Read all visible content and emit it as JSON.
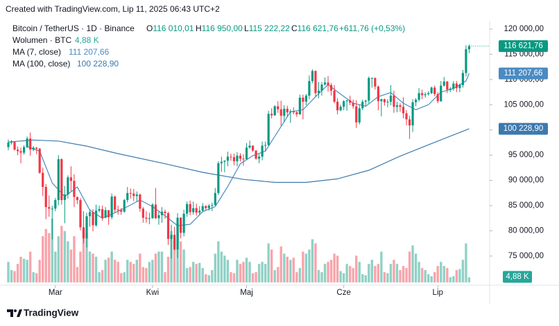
{
  "header": "Created with TradingView.com, Lip 11, 2025 06:43 UTC+2",
  "footer": "TradingView",
  "chart_data": {
    "type": "candlestick",
    "symbol": "Bitcoin / TetherUS · 1D · Binance",
    "ohlc_keys": [
      "O",
      "H",
      "L",
      "C"
    ],
    "ohlc_labels": [
      "116 010,01",
      "116 950,00",
      "115 222,22",
      "116 621,76"
    ],
    "change_label": "+611,76 (+0,53%)",
    "up_color": "#089981",
    "down_color": "#f23645",
    "open": [
      96600,
      97500,
      97600,
      96100,
      95800,
      95500,
      96600,
      98300,
      96100,
      96500,
      96300,
      91500,
      88700,
      84700,
      84400,
      84400,
      86100,
      94200,
      86100,
      87200,
      90600,
      89900,
      86700,
      86100,
      80700,
      78500,
      82900,
      83700,
      81100,
      84000,
      84300,
      82600,
      84100,
      82700,
      86800,
      84200,
      84100,
      83800,
      86100,
      87500,
      87400,
      86900,
      87200,
      84400,
      82600,
      82400,
      82500,
      85200,
      82500,
      83100,
      83800,
      83500,
      78400,
      79200,
      76300,
      82600,
      79600,
      83400,
      85300,
      83700,
      84500,
      83600,
      84000,
      84900,
      84500,
      85000,
      85100,
      87500,
      93400,
      93700,
      93900,
      94700,
      94600,
      93800,
      94900,
      94300,
      94200,
      96500,
      96900,
      95900,
      94300,
      94700,
      96900,
      97000,
      103200,
      102900,
      104700,
      104100,
      102800,
      104200,
      103500,
      103700,
      103500,
      103100,
      106400,
      105600,
      106800,
      109700,
      111700,
      107300,
      107800,
      109000,
      109400,
      108900,
      107800,
      105600,
      103900,
      104600,
      105700,
      105900,
      105400,
      104700,
      101500,
      104300,
      105600,
      105800,
      110300,
      110300,
      108600,
      105700,
      106100,
      105500,
      105600,
      106800,
      104600,
      104900,
      104600,
      103300,
      102100,
      100900,
      105500,
      106000,
      107300,
      106900,
      107100,
      107300,
      108400,
      107100,
      105700,
      108800,
      109600,
      108000,
      108200,
      109200,
      108300,
      108900,
      111300,
      116010.01
    ],
    "high": [
      98100,
      98000,
      97700,
      96700,
      96500,
      97000,
      98700,
      99500,
      96800,
      96600,
      96400,
      92500,
      89300,
      87000,
      85000,
      86500,
      95000,
      94400,
      88900,
      91000,
      92800,
      91200,
      86800,
      86500,
      83900,
      83600,
      84300,
      84300,
      85200,
      85000,
      85000,
      84700,
      84100,
      87400,
      87000,
      85000,
      84500,
      86300,
      88700,
      88400,
      88300,
      87800,
      87400,
      84700,
      83900,
      83600,
      85500,
      88500,
      83900,
      84700,
      84200,
      83800,
      81200,
      80800,
      83500,
      82700,
      84200,
      85800,
      86000,
      85800,
      85400,
      84900,
      85500,
      85100,
      85300,
      85600,
      88500,
      93800,
      94700,
      94000,
      95700,
      95300,
      95300,
      95600,
      95400,
      95200,
      97400,
      97900,
      96900,
      96000,
      95200,
      97700,
      97700,
      103800,
      104300,
      104900,
      105700,
      105800,
      104900,
      104800,
      104100,
      104500,
      103700,
      107000,
      107000,
      107100,
      110800,
      112000,
      111800,
      109500,
      109500,
      110400,
      110700,
      109300,
      108900,
      106300,
      105000,
      105900,
      105900,
      106800,
      106000,
      105900,
      105000,
      106000,
      106000,
      110600,
      110400,
      110400,
      108800,
      106200,
      106200,
      106100,
      108900,
      107800,
      105600,
      105300,
      106500,
      103900,
      102800,
      106100,
      106300,
      108300,
      108000,
      107500,
      107700,
      108600,
      108800,
      107500,
      109700,
      110500,
      109700,
      108500,
      109700,
      109700,
      109200,
      111900,
      116800,
      116950
    ],
    "low": [
      96000,
      97100,
      95900,
      95000,
      93400,
      95100,
      96400,
      94900,
      95800,
      95200,
      91300,
      86900,
      82300,
      82800,
      78300,
      83900,
      85100,
      85200,
      81500,
      86400,
      87900,
      84700,
      85300,
      80100,
      77500,
      76700,
      80800,
      79900,
      80800,
      83700,
      82000,
      82500,
      81200,
      82300,
      83600,
      83200,
      83200,
      83600,
      85600,
      86400,
      85900,
      85800,
      83800,
      81600,
      81600,
      81300,
      82400,
      82300,
      81200,
      81600,
      82400,
      77200,
      74500,
      76200,
      74600,
      78500,
      78900,
      82800,
      83100,
      83200,
      83000,
      83100,
      83800,
      84100,
      84000,
      83900,
      85000,
      87100,
      91700,
      91600,
      92800,
      93900,
      93000,
      92800,
      93700,
      92900,
      94100,
      96300,
      95700,
      94100,
      93400,
      94000,
      95800,
      96900,
      102300,
      102800,
      103400,
      100800,
      101500,
      102600,
      101400,
      103100,
      102600,
      103000,
      102100,
      104900,
      106100,
      109300,
      106600,
      106300,
      106800,
      108800,
      107600,
      106800,
      105300,
      103100,
      103700,
      103900,
      103800,
      104900,
      104200,
      100400,
      101100,
      103900,
      104800,
      105300,
      108400,
      108000,
      103900,
      102700,
      104800,
      104500,
      104900,
      103400,
      103500,
      103600,
      102300,
      100900,
      98200,
      99600,
      104700,
      105600,
      106100,
      106400,
      106800,
      107100,
      106700,
      105300,
      105600,
      108600,
      107300,
      107500,
      107800,
      107500,
      107500,
      108400,
      110600,
      115222.22
    ],
    "close": [
      97500,
      97600,
      96100,
      95800,
      95500,
      96600,
      98300,
      96100,
      96500,
      96300,
      91500,
      88700,
      84700,
      84400,
      84400,
      86100,
      94200,
      86100,
      87200,
      90600,
      89900,
      86700,
      86100,
      80700,
      78500,
      82900,
      83700,
      81100,
      84000,
      84300,
      82600,
      84100,
      82700,
      86800,
      84200,
      84100,
      83800,
      86100,
      87500,
      87400,
      86900,
      87200,
      84400,
      82600,
      82400,
      82500,
      85200,
      82500,
      83100,
      83800,
      83500,
      78400,
      79200,
      76300,
      82600,
      79600,
      83400,
      85300,
      83700,
      84500,
      83600,
      84000,
      84900,
      84500,
      85000,
      85100,
      87500,
      93400,
      93700,
      93900,
      94700,
      94600,
      93800,
      94900,
      94300,
      94200,
      96500,
      96900,
      95900,
      94300,
      94700,
      96900,
      97000,
      103200,
      102900,
      104700,
      104100,
      102800,
      104200,
      103500,
      103700,
      103500,
      103100,
      106400,
      105600,
      106800,
      109700,
      111700,
      107300,
      107800,
      109000,
      109400,
      108900,
      107800,
      105600,
      103900,
      104600,
      105700,
      105900,
      105400,
      104700,
      101500,
      104300,
      105600,
      105800,
      110300,
      110300,
      108600,
      105700,
      106100,
      105500,
      105600,
      106800,
      104600,
      104900,
      104600,
      103300,
      102100,
      100900,
      105500,
      106000,
      107300,
      106900,
      107100,
      107300,
      108400,
      107100,
      105700,
      108800,
      109600,
      108000,
      108200,
      109200,
      108300,
      108900,
      111300,
      116010.01,
      116621.76
    ],
    "volume": {
      "name": "Wolumen · BTC",
      "last_label": "4,88 K",
      "color": "#26a69a",
      "values": [
        20000,
        12000,
        11000,
        18000,
        25000,
        23000,
        22000,
        30000,
        10000,
        9000,
        22000,
        45000,
        52000,
        48000,
        62000,
        30000,
        45000,
        55000,
        50000,
        40000,
        32000,
        45000,
        15000,
        30000,
        52000,
        48000,
        30000,
        28000,
        25000,
        10000,
        12000,
        22000,
        24000,
        30000,
        22000,
        20000,
        9000,
        10000,
        22000,
        20000,
        18000,
        22000,
        28000,
        15000,
        14000,
        20000,
        22000,
        28000,
        30000,
        30000,
        10000,
        25000,
        50000,
        42000,
        58000,
        40000,
        32000,
        14000,
        15000,
        20000,
        18000,
        19000,
        14000,
        8000,
        7000,
        12000,
        28000,
        40000,
        30000,
        26000,
        22000,
        10000,
        9000,
        22000,
        18000,
        20000,
        24000,
        20000,
        9000,
        10000,
        18000,
        20000,
        18000,
        38000,
        32000,
        12000,
        15000,
        35000,
        28000,
        25000,
        22000,
        24000,
        10000,
        14000,
        30000,
        28000,
        32000,
        42000,
        38000,
        12000,
        10000,
        18000,
        20000,
        22000,
        28000,
        26000,
        11000,
        9000,
        18000,
        16000,
        14000,
        26000,
        20000,
        8000,
        7000,
        18000,
        22000,
        16000,
        18000,
        30000,
        10000,
        9000,
        18000,
        22000,
        18000,
        12000,
        16000,
        14000,
        30000,
        36000,
        28000,
        20000,
        14000,
        12000,
        8000,
        6000,
        10000,
        16000,
        20000,
        16000,
        14000,
        5000,
        6000,
        12000,
        13000,
        22000,
        38000,
        4880
      ]
    },
    "ma": [
      {
        "name": "MA (7, close)",
        "color": "#4a8bc2",
        "last_label": "111 207,66",
        "x": [
          6,
          10,
          14,
          18,
          22,
          26,
          30,
          34,
          38,
          42,
          46,
          50,
          54,
          58,
          62,
          66,
          70,
          74,
          78,
          82,
          86,
          90,
          94,
          98,
          102,
          106,
          110,
          114,
          118,
          122,
          126,
          130,
          134,
          138,
          142,
          146,
          147
        ],
        "values": [
          96700,
          95800,
          89500,
          86800,
          88700,
          84100,
          82500,
          83600,
          84800,
          86100,
          84800,
          83000,
          81000,
          81300,
          83800,
          84800,
          88800,
          93300,
          94900,
          95800,
          99700,
          103600,
          104000,
          106600,
          109000,
          107100,
          105300,
          104700,
          106600,
          107400,
          105300,
          104000,
          105000,
          107500,
          108200,
          109700,
          111207.66
        ]
      },
      {
        "name": "MA (100, close)",
        "color": "#3c79ad",
        "last_label": "100 228,90",
        "x": [
          0,
          8,
          16,
          25,
          35,
          50,
          62,
          75,
          85,
          95,
          105,
          115,
          125,
          135,
          147
        ],
        "values": [
          97600,
          98000,
          97800,
          96800,
          95300,
          93300,
          91600,
          90200,
          89600,
          89600,
          90300,
          92000,
          94800,
          97300,
          100228.9
        ]
      }
    ],
    "xticks": [
      {
        "value": 15,
        "label": "Mar"
      },
      {
        "value": 46,
        "label": "Kwi"
      },
      {
        "value": 76,
        "label": "Maj"
      },
      {
        "value": 107,
        "label": "Cze"
      },
      {
        "value": 137,
        "label": "Lip"
      }
    ],
    "ylim": [
      69500,
      121650
    ],
    "yticks": [
      {
        "value": 120000,
        "label": "120 000,00"
      },
      {
        "value": 115000,
        "label": "115 000,00"
      },
      {
        "value": 110000,
        "label": "110 000,00"
      },
      {
        "value": 105000,
        "label": "105 000,00"
      },
      {
        "value": 100000,
        "label": "100 000,00"
      },
      {
        "value": 95000,
        "label": "95 000,00"
      },
      {
        "value": 90000,
        "label": "90 000,00"
      },
      {
        "value": 85000,
        "label": "85 000,00"
      },
      {
        "value": 80000,
        "label": "80 000,00"
      },
      {
        "value": 75000,
        "label": "75 000,00"
      }
    ]
  }
}
